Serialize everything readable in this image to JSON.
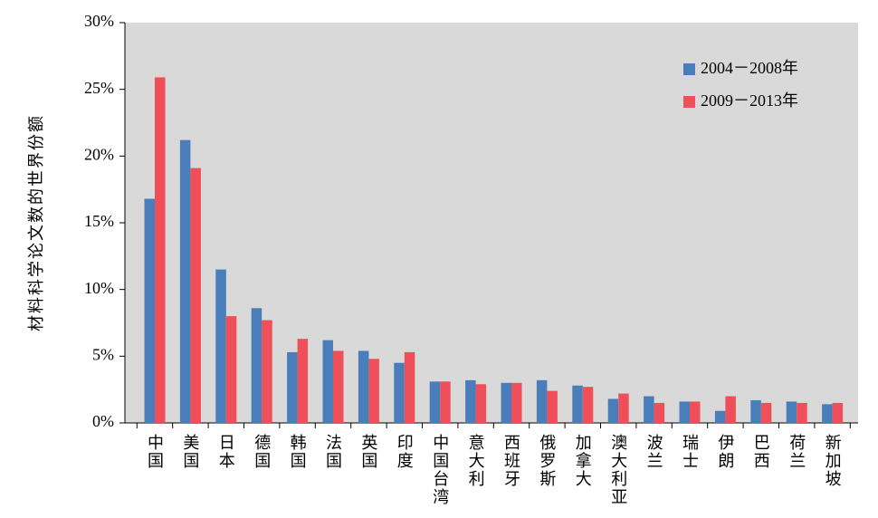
{
  "chart_data": {
    "type": "bar",
    "ylabel": "材料科学论文数的世界份额",
    "categories": [
      "中国",
      "美国",
      "日本",
      "德国",
      "韩国",
      "法国",
      "英国",
      "印度",
      "中国台湾",
      "意大利",
      "西班牙",
      "俄罗斯",
      "加拿大",
      "澳大利亚",
      "波兰",
      "瑞士",
      "伊朗",
      "巴西",
      "荷兰",
      "新加坡"
    ],
    "series": [
      {
        "name": "2004－2008年",
        "color": "#4a7ebb",
        "values": [
          16.8,
          21.2,
          11.5,
          8.6,
          5.3,
          6.2,
          5.4,
          4.5,
          3.1,
          3.2,
          3.0,
          3.2,
          2.8,
          1.8,
          2.0,
          1.6,
          0.9,
          1.7,
          1.6,
          1.4
        ]
      },
      {
        "name": "2009－2013年",
        "color": "#ee4f58",
        "values": [
          25.9,
          19.1,
          8.0,
          7.7,
          6.3,
          5.4,
          4.8,
          5.3,
          3.1,
          2.9,
          3.0,
          2.4,
          2.7,
          2.2,
          1.5,
          1.6,
          2.0,
          1.5,
          1.5,
          1.5
        ]
      }
    ],
    "ylim": [
      0,
      30
    ],
    "yticks": [
      {
        "value": 0,
        "label": "0%"
      },
      {
        "value": 5,
        "label": "5%"
      },
      {
        "value": 10,
        "label": "10%"
      },
      {
        "value": 15,
        "label": "15%"
      },
      {
        "value": 20,
        "label": "20%"
      },
      {
        "value": 25,
        "label": "25%"
      },
      {
        "value": 30,
        "label": "30%"
      }
    ],
    "legend": "upper-right"
  }
}
